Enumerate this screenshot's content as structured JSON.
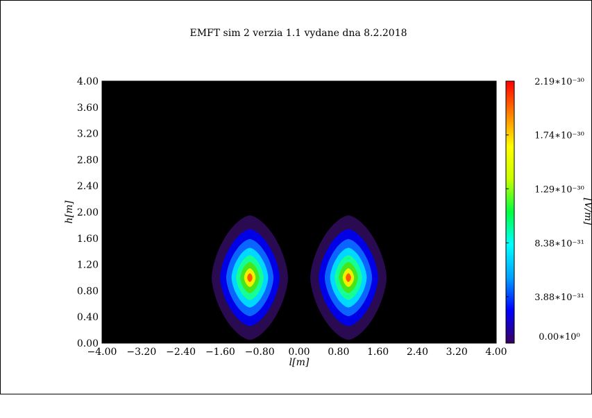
{
  "chart_data": {
    "type": "heatmap",
    "title": "EMFT sim 2 verzia 1.1 vydane dna 8.2.2018",
    "xlabel": "l[m]",
    "ylabel": "h[m]",
    "colorbar_label": "[V/m]",
    "xlim": [
      -4.0,
      4.0
    ],
    "ylim": [
      0.0,
      4.0
    ],
    "x_ticks": [
      "−4.00",
      "−3.20",
      "−2.40",
      "−1.60",
      "−0.80",
      "0.00",
      "0.80",
      "1.60",
      "2.40",
      "3.20",
      "4.00"
    ],
    "y_ticks": [
      "0.00",
      "0.40",
      "0.80",
      "1.20",
      "1.60",
      "2.00",
      "2.40",
      "2.80",
      "3.20",
      "3.60",
      "4.00"
    ],
    "colorbar_ticks": [
      {
        "value": 0.0,
        "label": "0.00∗10⁰"
      },
      {
        "value": 3.88e-31,
        "label": "3.88∗10⁻³¹"
      },
      {
        "value": 8.38e-31,
        "label": "8.38∗10⁻³¹"
      },
      {
        "value": 1.29e-30,
        "label": "1.29∗10⁻³⁰"
      },
      {
        "value": 1.74e-30,
        "label": "1.74∗10⁻³⁰"
      },
      {
        "value": 2.19e-30,
        "label": "2.19∗10⁻³⁰"
      }
    ],
    "value_range": [
      0.0,
      2.19e-30
    ],
    "background_color": "#000000",
    "sources": [
      {
        "x": -1.0,
        "y": 1.0,
        "x_extent": 1.55,
        "y_extent": 0.95,
        "peak": 2.19e-30
      },
      {
        "x": 1.0,
        "y": 1.0,
        "x_extent": 1.55,
        "y_extent": 0.95,
        "peak": 2.19e-30
      }
    ],
    "contour_levels": [
      {
        "r": 1.0,
        "color": "#2a0b52"
      },
      {
        "r": 0.78,
        "color": "#0000e6"
      },
      {
        "r": 0.62,
        "color": "#0a64ff"
      },
      {
        "r": 0.48,
        "color": "#00d9ff"
      },
      {
        "r": 0.36,
        "color": "#14ff96"
      },
      {
        "r": 0.25,
        "color": "#46e61a"
      },
      {
        "r": 0.15,
        "color": "#f0f000"
      },
      {
        "r": 0.07,
        "color": "#ff5a00"
      }
    ],
    "colormap": [
      "#3a0060",
      "#0000ff",
      "#00a0ff",
      "#00ffff",
      "#00ff40",
      "#c8ff00",
      "#ffff00",
      "#ff8000",
      "#ff0000"
    ]
  }
}
